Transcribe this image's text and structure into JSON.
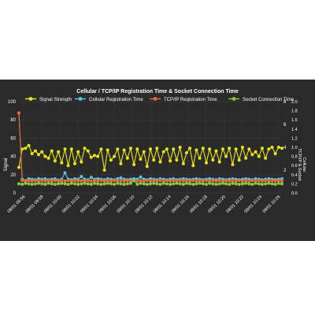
{
  "chart_data": {
    "type": "line",
    "title": "Cellular / TCP/IP Registration Time & Socket Connection Time",
    "ylabel_left": "Signal",
    "ylabel_right_outer": "Cellular",
    "ylabel_right_outer2": "TCP/IP & Socket",
    "ylim_left": [
      0,
      100
    ],
    "ylim_right_inner": [
      0,
      8
    ],
    "ylim_right_outer": [
      0,
      2.0
    ],
    "yticks_left": [
      "0",
      "20",
      "40",
      "60",
      "80",
      "100"
    ],
    "yticks_right_inner": [
      "2",
      "4",
      "6",
      "8"
    ],
    "yticks_right_outer": [
      "0.0",
      "0.2",
      "0.4",
      "0.6",
      "0.8",
      "1.0",
      "1.2",
      "1.4",
      "1.6",
      "1.8",
      "2.0"
    ],
    "x_ticks": [
      "09/01 09:56",
      "09/01 09:58",
      "09/01 10:00",
      "09/01 10:02",
      "09/01 10:04",
      "09/01 10:06",
      "09/01 10:10",
      "09/01 10:12",
      "09/01 10:14",
      "09/01 10:16",
      "09/01 10:18",
      "09/01 10:20",
      "09/01 10:22",
      "09/01 10:24",
      "09/01 10:26"
    ],
    "grid": true,
    "legend_position": "top",
    "series": [
      {
        "name": "Signal Strength",
        "color": "#e8e31a",
        "axis": "left",
        "values": [
          28,
          48,
          49,
          52,
          43,
          46,
          42,
          45,
          40,
          38,
          46,
          35,
          45,
          33,
          48,
          30,
          48,
          32,
          45,
          34,
          49,
          46,
          39,
          41,
          40,
          48,
          25,
          47,
          36,
          40,
          48,
          32,
          47,
          38,
          49,
          31,
          48,
          37,
          45,
          29,
          48,
          36,
          49,
          34,
          45,
          48,
          35,
          48,
          36,
          50,
          32,
          44,
          49,
          30,
          47,
          38,
          49,
          33,
          48,
          36,
          46,
          34,
          48,
          40,
          49,
          31,
          48,
          36,
          50,
          38,
          48,
          42,
          45,
          40,
          49,
          38,
          48,
          50,
          43,
          50,
          49
        ]
      },
      {
        "name": "Cellular Registration Time",
        "color": "#56c4e0",
        "axis": "right_outer",
        "values": [
          1.75,
          0.3,
          0.27,
          0.31,
          0.3,
          0.29,
          0.31,
          0.3,
          0.31,
          0.29,
          0.3,
          0.31,
          0.28,
          0.3,
          0.44,
          0.3,
          0.29,
          0.31,
          0.3,
          0.36,
          0.3,
          0.29,
          0.34,
          0.3,
          0.31,
          0.3,
          0.29,
          0.31,
          0.3,
          0.29,
          0.31,
          0.33,
          0.3,
          0.29,
          0.3,
          0.31,
          0.3,
          0.35,
          0.3,
          0.29,
          0.31,
          0.3,
          0.29,
          0.31,
          0.3,
          0.29,
          0.3,
          0.31,
          0.29,
          0.3,
          0.31,
          0.3,
          0.29,
          0.3,
          0.31,
          0.3,
          0.29,
          0.3,
          0.31,
          0.3,
          0.29,
          0.31,
          0.3,
          0.29,
          0.3,
          0.31,
          0.3,
          0.29,
          0.3,
          0.31,
          0.3,
          0.29,
          0.31,
          0.3,
          0.29,
          0.3,
          0.31,
          0.3,
          0.29,
          0.3,
          0.31
        ]
      },
      {
        "name": "TCP/IP Registration Time",
        "color": "#e8683a",
        "axis": "right_outer",
        "values": [
          1.75,
          0.27,
          0.26,
          0.27,
          0.26,
          0.27,
          0.26,
          0.27,
          0.26,
          0.27,
          0.26,
          0.27,
          0.26,
          0.27,
          0.26,
          0.27,
          0.26,
          0.27,
          0.26,
          0.27,
          0.26,
          0.27,
          0.26,
          0.27,
          0.26,
          0.27,
          0.26,
          0.27,
          0.26,
          0.27,
          0.26,
          0.27,
          0.26,
          0.27,
          0.26,
          0.27,
          0.26,
          0.27,
          0.26,
          0.27,
          0.26,
          0.27,
          0.26,
          0.27,
          0.26,
          0.27,
          0.26,
          0.27,
          0.26,
          0.27,
          0.26,
          0.27,
          0.26,
          0.27,
          0.26,
          0.27,
          0.26,
          0.27,
          0.26,
          0.27,
          0.26,
          0.27,
          0.26,
          0.27,
          0.26,
          0.27,
          0.26,
          0.27,
          0.26,
          0.27,
          0.26,
          0.27,
          0.26,
          0.27,
          0.26,
          0.27,
          0.26,
          0.27,
          0.26,
          0.27,
          0.26
        ]
      },
      {
        "name": "Socket Connection Time",
        "color": "#8cc63f",
        "axis": "right_outer",
        "values": [
          0.2,
          0.19,
          0.21,
          0.2,
          0.19,
          0.2,
          0.21,
          0.2,
          0.19,
          0.21,
          0.2,
          0.19,
          0.2,
          0.21,
          0.2,
          0.19,
          0.21,
          0.2,
          0.19,
          0.2,
          0.21,
          0.2,
          0.19,
          0.21,
          0.2,
          0.19,
          0.2,
          0.21,
          0.2,
          0.19,
          0.21,
          0.2,
          0.19,
          0.2,
          0.21,
          0.27,
          0.19,
          0.21,
          0.2,
          0.19,
          0.2,
          0.21,
          0.2,
          0.19,
          0.21,
          0.2,
          0.19,
          0.2,
          0.21,
          0.2,
          0.19,
          0.21,
          0.2,
          0.19,
          0.2,
          0.21,
          0.2,
          0.19,
          0.21,
          0.2,
          0.19,
          0.2,
          0.21,
          0.2,
          0.19,
          0.21,
          0.2,
          0.19,
          0.2,
          0.21,
          0.2,
          0.19,
          0.21,
          0.2,
          0.19,
          0.2,
          0.21,
          0.2,
          0.19,
          0.21,
          0.2
        ]
      }
    ]
  }
}
